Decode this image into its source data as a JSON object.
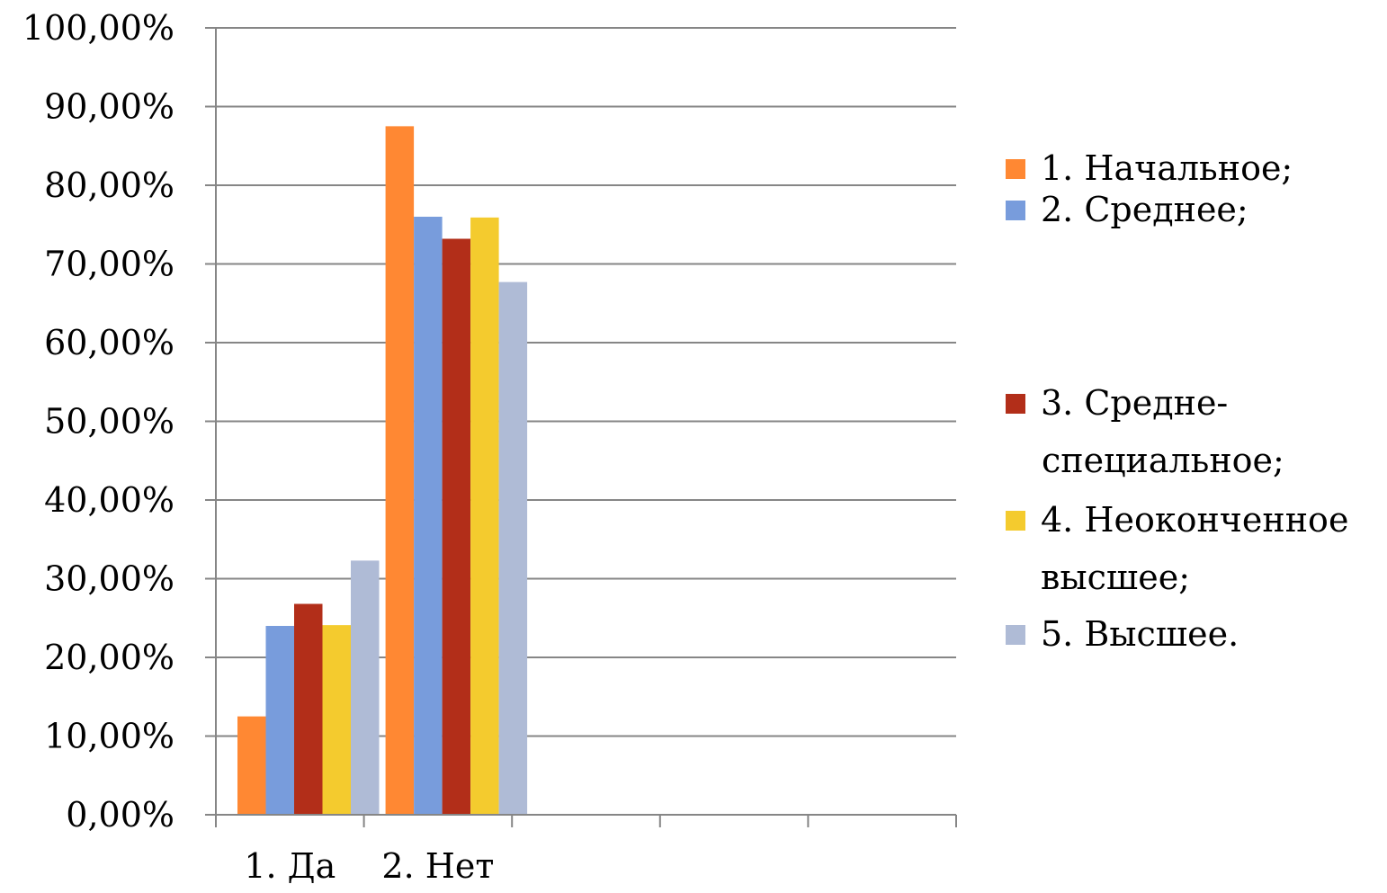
{
  "chart_data": {
    "type": "bar",
    "categories": [
      "1. Да",
      "2. Нет",
      "",
      "",
      ""
    ],
    "series": [
      {
        "name": "1. Начальное;",
        "color": "#FF8833",
        "values": [
          12.5,
          87.5,
          null,
          null,
          null
        ]
      },
      {
        "name": "2. Среднее;",
        "color": "#789CDC",
        "values": [
          24.0,
          76.0,
          null,
          null,
          null
        ]
      },
      {
        "name": "3. Средне-специальное;",
        "color": "#B22E19",
        "values": [
          26.8,
          73.2,
          null,
          null,
          null
        ]
      },
      {
        "name": "4. Неоконченное высшее;",
        "color": "#F4CB2E",
        "values": [
          24.1,
          75.9,
          null,
          null,
          null
        ]
      },
      {
        "name": "5. Высшее.",
        "color": "#AFBBD6",
        "values": [
          32.3,
          67.7,
          null,
          null,
          null
        ]
      }
    ],
    "legend_lines": [
      [
        "1. Начальное;"
      ],
      [
        "2. Среднее;"
      ],
      [
        "3. Средне-",
        "специальное;"
      ],
      [
        "4. Неоконченное",
        "высшее;"
      ],
      [
        "5. Высшее."
      ]
    ],
    "yticks": [
      "0,00%",
      "10,00%",
      "20,00%",
      "30,00%",
      "40,00%",
      "50,00%",
      "60,00%",
      "70,00%",
      "80,00%",
      "90,00%",
      "100,00%"
    ],
    "ylim": [
      0,
      100
    ],
    "grid": true,
    "legend_position": "right"
  }
}
